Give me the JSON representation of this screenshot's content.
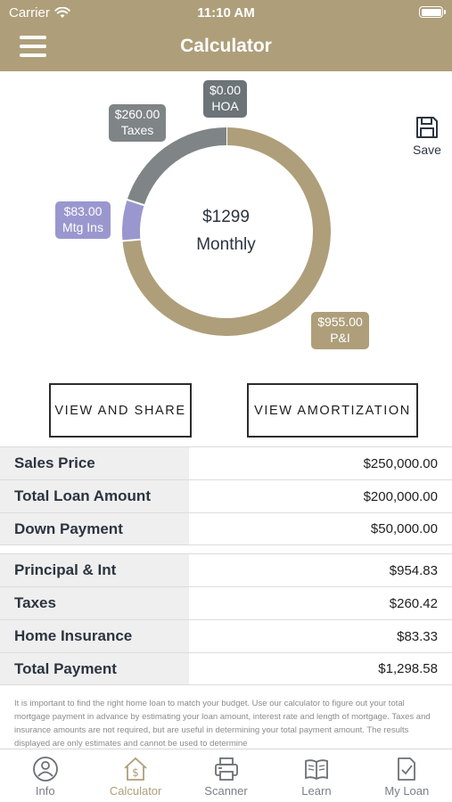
{
  "status_bar": {
    "carrier": "Carrier",
    "time": "11:10 AM"
  },
  "nav": {
    "title": "Calculator"
  },
  "chart": {
    "center_amount": "$1299",
    "center_label": "Monthly",
    "save_label": "Save",
    "tags": {
      "hoa_value": "$0.00",
      "hoa_label": "HOA",
      "taxes_value": "$260.00",
      "taxes_label": "Taxes",
      "mtg_value": "$83.00",
      "mtg_label": "Mtg Ins",
      "pi_value": "$955.00",
      "pi_label": "P&I"
    }
  },
  "chart_data": {
    "type": "pie",
    "categories": [
      "P&I",
      "Mtg Ins",
      "Taxes",
      "HOA"
    ],
    "values": [
      955.0,
      83.0,
      260.0,
      0.0
    ],
    "colors": [
      "#ae9f7a",
      "#9a97cf",
      "#7f8487",
      "#6d7478"
    ]
  },
  "buttons": {
    "share": "VIEW AND SHARE",
    "amortization": "VIEW AMORTIZATION"
  },
  "loan_table": [
    {
      "label": "Sales Price",
      "value": "$250,000.00"
    },
    {
      "label": "Total Loan Amount",
      "value": "$200,000.00"
    },
    {
      "label": "Down Payment",
      "value": "$50,000.00"
    }
  ],
  "payment_table": [
    {
      "label": "Principal & Int",
      "value": "$954.83"
    },
    {
      "label": "Taxes",
      "value": "$260.42"
    },
    {
      "label": "Home Insurance",
      "value": "$83.33"
    },
    {
      "label": "Total Payment",
      "value": "$1,298.58"
    }
  ],
  "disclaimer": "It is important to find the right home loan to match your budget. Use our calculator to figure out your total mortgage payment in advance by estimating your loan amount, interest rate and length of mortgage. Taxes and insurance amounts are not required, but are useful in determining your total payment amount. The results displayed are only estimates and cannot be used to determine",
  "tabs": [
    {
      "label": "Info",
      "icon": "info-icon"
    },
    {
      "label": "Calculator",
      "icon": "calculator-icon",
      "active": true
    },
    {
      "label": "Scanner",
      "icon": "printer-icon"
    },
    {
      "label": "Learn",
      "icon": "book-icon"
    },
    {
      "label": "My Loan",
      "icon": "document-check-icon"
    }
  ]
}
